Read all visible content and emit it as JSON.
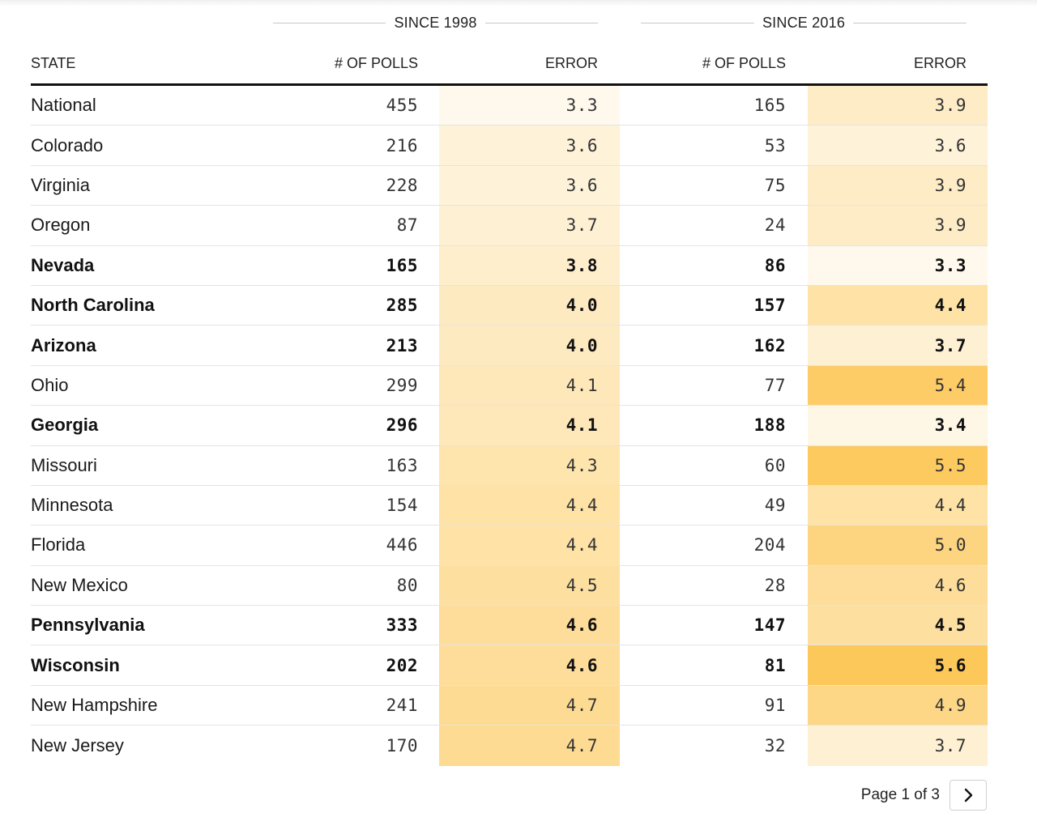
{
  "groups": [
    {
      "label": "SINCE 1998"
    },
    {
      "label": "SINCE 2016"
    }
  ],
  "columns": {
    "state": "STATE",
    "polls_1998": "# OF POLLS",
    "error_1998": "ERROR",
    "polls_2016": "# OF POLLS",
    "error_2016": "ERROR"
  },
  "rows": [
    {
      "state": "National",
      "bold": false,
      "polls_1998": "455",
      "error_1998": "3.3",
      "polls_2016": "165",
      "error_2016": "3.9"
    },
    {
      "state": "Colorado",
      "bold": false,
      "polls_1998": "216",
      "error_1998": "3.6",
      "polls_2016": "53",
      "error_2016": "3.6"
    },
    {
      "state": "Virginia",
      "bold": false,
      "polls_1998": "228",
      "error_1998": "3.6",
      "polls_2016": "75",
      "error_2016": "3.9"
    },
    {
      "state": "Oregon",
      "bold": false,
      "polls_1998": "87",
      "error_1998": "3.7",
      "polls_2016": "24",
      "error_2016": "3.9"
    },
    {
      "state": "Nevada",
      "bold": true,
      "polls_1998": "165",
      "error_1998": "3.8",
      "polls_2016": "86",
      "error_2016": "3.3"
    },
    {
      "state": "North Carolina",
      "bold": true,
      "polls_1998": "285",
      "error_1998": "4.0",
      "polls_2016": "157",
      "error_2016": "4.4"
    },
    {
      "state": "Arizona",
      "bold": true,
      "polls_1998": "213",
      "error_1998": "4.0",
      "polls_2016": "162",
      "error_2016": "3.7"
    },
    {
      "state": "Ohio",
      "bold": false,
      "polls_1998": "299",
      "error_1998": "4.1",
      "polls_2016": "77",
      "error_2016": "5.4"
    },
    {
      "state": "Georgia",
      "bold": true,
      "polls_1998": "296",
      "error_1998": "4.1",
      "polls_2016": "188",
      "error_2016": "3.4"
    },
    {
      "state": "Missouri",
      "bold": false,
      "polls_1998": "163",
      "error_1998": "4.3",
      "polls_2016": "60",
      "error_2016": "5.5"
    },
    {
      "state": "Minnesota",
      "bold": false,
      "polls_1998": "154",
      "error_1998": "4.4",
      "polls_2016": "49",
      "error_2016": "4.4"
    },
    {
      "state": "Florida",
      "bold": false,
      "polls_1998": "446",
      "error_1998": "4.4",
      "polls_2016": "204",
      "error_2016": "5.0"
    },
    {
      "state": "New Mexico",
      "bold": false,
      "polls_1998": "80",
      "error_1998": "4.5",
      "polls_2016": "28",
      "error_2016": "4.6"
    },
    {
      "state": "Pennsylvania",
      "bold": true,
      "polls_1998": "333",
      "error_1998": "4.6",
      "polls_2016": "147",
      "error_2016": "4.5"
    },
    {
      "state": "Wisconsin",
      "bold": true,
      "polls_1998": "202",
      "error_1998": "4.6",
      "polls_2016": "81",
      "error_2016": "5.6"
    },
    {
      "state": "New Hampshire",
      "bold": false,
      "polls_1998": "241",
      "error_1998": "4.7",
      "polls_2016": "91",
      "error_2016": "4.9"
    },
    {
      "state": "New Jersey",
      "bold": false,
      "polls_1998": "170",
      "error_1998": "4.7",
      "polls_2016": "32",
      "error_2016": "3.7"
    }
  ],
  "heat_scale": {
    "min_value": 3.3,
    "max_value": 5.6,
    "low_color": "#fef9ec",
    "high_color": "#fdc85a"
  },
  "pagination": {
    "label": "Page 1 of 3",
    "next_icon": "chevron-right-icon"
  }
}
